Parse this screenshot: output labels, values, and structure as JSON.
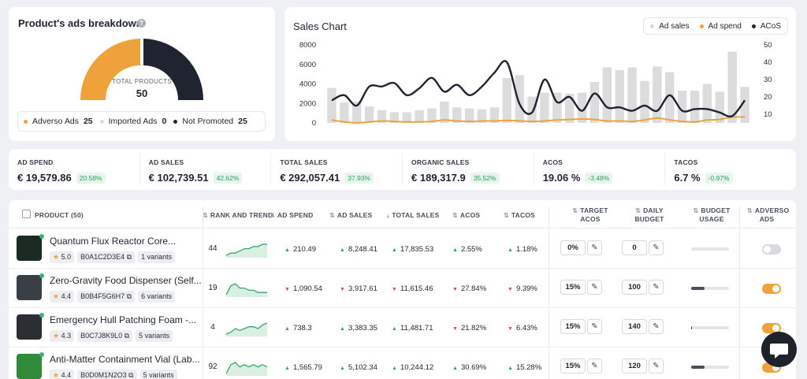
{
  "ads_breakdown": {
    "title": "Product's ads breakdown",
    "help_icon": "?",
    "total_label": "TOTAL PRODUCTS",
    "total_value": "50",
    "legend": [
      {
        "label": "Adverso Ads",
        "count": "25",
        "color": "#f0a23a"
      },
      {
        "label": "Imported Ads",
        "count": "0",
        "color": "#d9dbdf"
      },
      {
        "label": "Not Promoted",
        "count": "25",
        "color": "#1f2430"
      }
    ]
  },
  "sales_chart": {
    "title": "Sales Chart",
    "legend": [
      {
        "label": "Ad sales",
        "color": "#d9d9d9"
      },
      {
        "label": "Ad spend",
        "color": "#f0a23a"
      },
      {
        "label": "ACoS",
        "color": "#1f2430"
      }
    ]
  },
  "chart_data": {
    "type": "bar",
    "title": "Sales Chart",
    "series": [
      {
        "name": "Ad sales",
        "type": "bar",
        "axis": "left",
        "values": [
          3600,
          2100,
          2200,
          1700,
          1300,
          1100,
          1100,
          1300,
          1500,
          2200,
          1600,
          1500,
          1400,
          1600,
          4600,
          4900,
          2700,
          3100,
          3100,
          3000,
          3100,
          4200,
          5700,
          5400,
          5700,
          4300,
          5800,
          5200,
          3300,
          3300,
          4000,
          3200,
          7300,
          3700
        ]
      },
      {
        "name": "Ad spend",
        "type": "line",
        "axis": "left",
        "values": [
          300,
          100,
          0,
          100,
          200,
          150,
          100,
          100,
          150,
          300,
          200,
          150,
          200,
          200,
          250,
          200,
          150,
          200,
          300,
          350,
          400,
          350,
          200,
          200,
          150,
          300,
          500,
          300,
          150,
          100,
          300,
          350,
          600,
          600
        ]
      },
      {
        "name": "ACoS",
        "type": "line",
        "axis": "right",
        "values": [
          18,
          21,
          15,
          26,
          26,
          28,
          21,
          25,
          31,
          23,
          27,
          21,
          26,
          34,
          40,
          16,
          11,
          30,
          17,
          20,
          12,
          22,
          14,
          14,
          12,
          15,
          12,
          21,
          12,
          13,
          13,
          11,
          9,
          18
        ]
      }
    ],
    "y_left": {
      "ticks": [
        "8000",
        "6000",
        "4000",
        "2000",
        "0"
      ],
      "range": [
        0,
        8000
      ]
    },
    "y_right": {
      "ticks": [
        "50",
        "40",
        "30",
        "20",
        "10"
      ],
      "range": [
        5,
        50
      ]
    },
    "grid": false,
    "legend_position": "top-right"
  },
  "metrics": [
    {
      "label": "AD SPEND",
      "value": "€ 19,579.86",
      "change": "20.58%"
    },
    {
      "label": "AD SALES",
      "value": "€ 102,739.51",
      "change": "42.62%"
    },
    {
      "label": "TOTAL SALES",
      "value": "€ 292,057.41",
      "change": "37.93%"
    },
    {
      "label": "ORGANIC SALES",
      "value": "€ 189,317.9",
      "change": "35.52%"
    },
    {
      "label": "ACOS",
      "value": "19.06 %",
      "change": "-3.48%"
    },
    {
      "label": "TACOS",
      "value": "6.7 %",
      "change": "-0.97%"
    }
  ],
  "table": {
    "headers": {
      "product": "PRODUCT (50)",
      "rank": "RANK AND TREND",
      "ad_spend": "AD SPEND",
      "ad_sales": "AD SALES",
      "total_sales": "TOTAL SALES",
      "acos": "ACOS",
      "tacos": "TACOS",
      "target_acos": "TARGET ACOS",
      "daily_budget": "DAILY BUDGET",
      "budget_usage": "BUDGET USAGE",
      "adverso_ads": "ADVERSO ADS"
    },
    "rows": [
      {
        "name": "Quantum Flux Reactor Core...",
        "rating": "5.0",
        "asin": "B0A1C2D3E4",
        "variants": "1 variants",
        "rank": "44",
        "trend": [
          2,
          3,
          3,
          4,
          5,
          5,
          6,
          6,
          7,
          7
        ],
        "ad_spend": "210.49",
        "ad_spend_dir": "up",
        "ad_sales": "8,248.41",
        "ad_sales_dir": "up",
        "total_sales": "17,835.53",
        "total_sales_dir": "up",
        "acos": "2.55%",
        "acos_dir": "up",
        "tacos": "1.18%",
        "tacos_dir": "up",
        "target_acos": "0%",
        "daily_budget": "0",
        "usage": 0,
        "adverso_on": false,
        "thumb_color": "#1c2a24"
      },
      {
        "name": "Zero-Gravity Food Dispenser (Self...",
        "rating": "4.4",
        "asin": "B0B4F5G6H7",
        "variants": "6 variants",
        "rank": "19",
        "trend": [
          2,
          6,
          7,
          5,
          5,
          4,
          4,
          3,
          3,
          3
        ],
        "ad_spend": "1,090.54",
        "ad_spend_dir": "down",
        "ad_sales": "3,917.61",
        "ad_sales_dir": "down",
        "total_sales": "11,615.46",
        "total_sales_dir": "down",
        "acos": "27.84%",
        "acos_dir": "down",
        "tacos": "9.39%",
        "tacos_dir": "down",
        "target_acos": "15%",
        "daily_budget": "100",
        "usage": 0.35,
        "adverso_on": true,
        "thumb_color": "#3a3f45"
      },
      {
        "name": "Emergency Hull Patching Foam -...",
        "rating": "4.3",
        "asin": "B0C7J8K9L0",
        "variants": "5 variants",
        "rank": "4",
        "trend": [
          2,
          3,
          5,
          4,
          5,
          6,
          6,
          5,
          7,
          8
        ],
        "ad_spend": "738.3",
        "ad_spend_dir": "up",
        "ad_sales": "3,383.35",
        "ad_sales_dir": "up",
        "total_sales": "11,481.71",
        "total_sales_dir": "up",
        "acos": "21.82%",
        "acos_dir": "down",
        "tacos": "6.43%",
        "tacos_dir": "down",
        "target_acos": "15%",
        "daily_budget": "140",
        "usage": 0.02,
        "adverso_on": true,
        "thumb_color": "#2b2f33"
      },
      {
        "name": "Anti-Matter Containment Vial (Lab...",
        "rating": "4.4",
        "asin": "B0D0M1N2O3",
        "variants": "5 variants",
        "rank": "92",
        "trend": [
          1,
          5,
          6,
          4,
          5,
          4,
          5,
          4,
          5,
          4
        ],
        "ad_spend": "1,565.79",
        "ad_spend_dir": "up",
        "ad_sales": "5,102.34",
        "ad_sales_dir": "up",
        "total_sales": "10,244.12",
        "total_sales_dir": "up",
        "acos": "30.69%",
        "acos_dir": "up",
        "tacos": "15.28%",
        "tacos_dir": "up",
        "target_acos": "15%",
        "daily_budget": "120",
        "usage": 0.35,
        "adverso_on": true,
        "thumb_color": "#2f8a3a"
      }
    ]
  }
}
